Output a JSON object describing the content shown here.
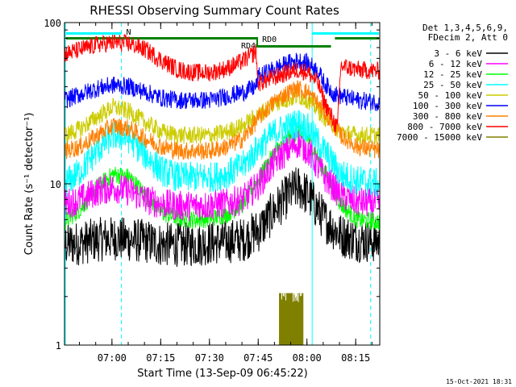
{
  "chart_data": {
    "type": "line",
    "title": "RHESSI Observing Summary Count Rates",
    "ylabel": "Count Rate (s⁻¹ detector⁻¹)",
    "xlabel": "Start Time (13-Sep-09 06:45:22)",
    "yscale": "log",
    "ylim": [
      1,
      100
    ],
    "xlim_minutes_after_start": [
      0,
      97
    ],
    "x_ticks": [
      {
        "label": "07:00",
        "minutes": 14.6
      },
      {
        "label": "07:15",
        "minutes": 29.6
      },
      {
        "label": "07:30",
        "minutes": 44.6
      },
      {
        "label": "07:45",
        "minutes": 59.6
      },
      {
        "label": "08:00",
        "minutes": 74.6
      },
      {
        "label": "08:15",
        "minutes": 89.6
      }
    ],
    "y_ticks": [
      {
        "label": "1",
        "value": 1
      },
      {
        "label": "10",
        "value": 10
      },
      {
        "label": "100",
        "value": 100
      }
    ],
    "legend_header": [
      "Det 1,3,4,5,6,9,",
      "FDecim 2, Att 0"
    ],
    "legend_position": "right",
    "series": [
      {
        "name": "3 - 6 keV",
        "color": "#000000",
        "x": [
          0,
          5,
          10,
          15,
          20,
          25,
          30,
          35,
          40,
          45,
          50,
          55,
          60,
          65,
          70,
          72,
          75,
          80,
          85,
          90,
          97
        ],
        "y": [
          4.2,
          4.3,
          4.5,
          4.6,
          4.5,
          4.4,
          4.2,
          4.2,
          4.2,
          4.3,
          4.4,
          4.5,
          5.2,
          7,
          9,
          9.5,
          8.5,
          6,
          4.8,
          4.5,
          4.4
        ]
      },
      {
        "name": "6 - 12 keV",
        "color": "#ff00ff",
        "x": [
          0,
          5,
          10,
          15,
          20,
          25,
          30,
          35,
          40,
          45,
          50,
          55,
          60,
          65,
          70,
          72,
          75,
          80,
          85,
          90,
          97
        ],
        "y": [
          7.5,
          8,
          9,
          9.5,
          9,
          8,
          7.5,
          7.3,
          7.3,
          7.4,
          7.6,
          8,
          10,
          14,
          17,
          18,
          16,
          11,
          8.5,
          7.7,
          7.5
        ]
      },
      {
        "name": "12 - 25 keV",
        "color": "#00ff00",
        "x": [
          0,
          5,
          10,
          15,
          20,
          25,
          30,
          35,
          40,
          45,
          50,
          55,
          60,
          65,
          70,
          72,
          75,
          80,
          85,
          90,
          97
        ],
        "y": [
          5.8,
          7,
          9.5,
          11.5,
          11,
          8.5,
          6.6,
          6.1,
          6,
          6.1,
          6.5,
          7.5,
          11,
          16,
          20,
          21,
          19,
          12,
          7.5,
          6,
          5.8
        ]
      },
      {
        "name": "25 - 50 keV",
        "color": "#00ffff",
        "x": [
          0,
          5,
          10,
          15,
          20,
          25,
          30,
          35,
          40,
          45,
          50,
          55,
          60,
          65,
          70,
          72,
          75,
          80,
          85,
          90,
          97
        ],
        "y": [
          10,
          12,
          16,
          20,
          19,
          15,
          12,
          11,
          11,
          11,
          11.5,
          13,
          17,
          21,
          23,
          24,
          22,
          16,
          11.5,
          10.5,
          10
        ]
      },
      {
        "name": "50 - 100 keV",
        "color": "#cccc00",
        "x": [
          0,
          5,
          10,
          15,
          20,
          25,
          30,
          35,
          40,
          45,
          50,
          55,
          60,
          65,
          70,
          72,
          75,
          80,
          85,
          90,
          97
        ],
        "y": [
          20,
          22,
          26,
          30,
          28,
          24,
          21,
          20,
          20,
          20,
          21,
          23,
          27,
          32,
          34,
          35,
          33,
          26,
          21,
          20,
          20
        ]
      },
      {
        "name": "100 - 300 keV",
        "color": "#0000ff",
        "x": [
          0,
          5,
          10,
          15,
          20,
          25,
          30,
          35,
          40,
          45,
          50,
          55,
          59,
          59.5,
          65,
          70,
          72,
          75,
          78,
          80,
          83,
          85,
          90,
          97
        ],
        "y": [
          33,
          36,
          39,
          41,
          40,
          37,
          34,
          33,
          33,
          33,
          35,
          37,
          40,
          46,
          52,
          57,
          58,
          56,
          50,
          42,
          36,
          35,
          33,
          32
        ]
      },
      {
        "name": "300 - 800 keV",
        "color": "#ff8000",
        "x": [
          0,
          5,
          10,
          15,
          20,
          25,
          30,
          35,
          40,
          45,
          50,
          55,
          60,
          65,
          70,
          72,
          75,
          80,
          85,
          90,
          97
        ],
        "y": [
          16,
          17,
          20,
          23,
          22,
          19,
          17,
          16,
          16,
          16,
          17,
          19,
          26,
          33,
          38,
          39,
          37,
          28,
          20,
          17,
          16
        ]
      },
      {
        "name": "800 - 7000 keV",
        "color": "#ff0000",
        "x": [
          0,
          5,
          10,
          15,
          20,
          25,
          30,
          35,
          40,
          45,
          50,
          55,
          59,
          59.5,
          65,
          70,
          72,
          75,
          78,
          80,
          84,
          85,
          90,
          97
        ],
        "y": [
          64,
          68,
          73,
          75,
          74,
          68,
          58,
          51,
          49,
          49,
          52,
          58,
          66,
          42,
          46,
          50,
          51,
          49,
          42,
          32,
          22,
          54,
          51,
          50
        ]
      },
      {
        "name": "7000 - 15000 keV",
        "color": "#808000",
        "x": [
          66,
          66.2,
          73.5,
          73.7
        ],
        "y": [
          2.1,
          1,
          1,
          2.1
        ]
      }
    ],
    "annotations": [
      {
        "label": "N",
        "color": "#00ffff"
      },
      {
        "label": "RD4",
        "color": "#008000"
      },
      {
        "label": "RD0",
        "color": "#008000"
      }
    ]
  },
  "timestamp": "15-Oct-2021 18:31"
}
